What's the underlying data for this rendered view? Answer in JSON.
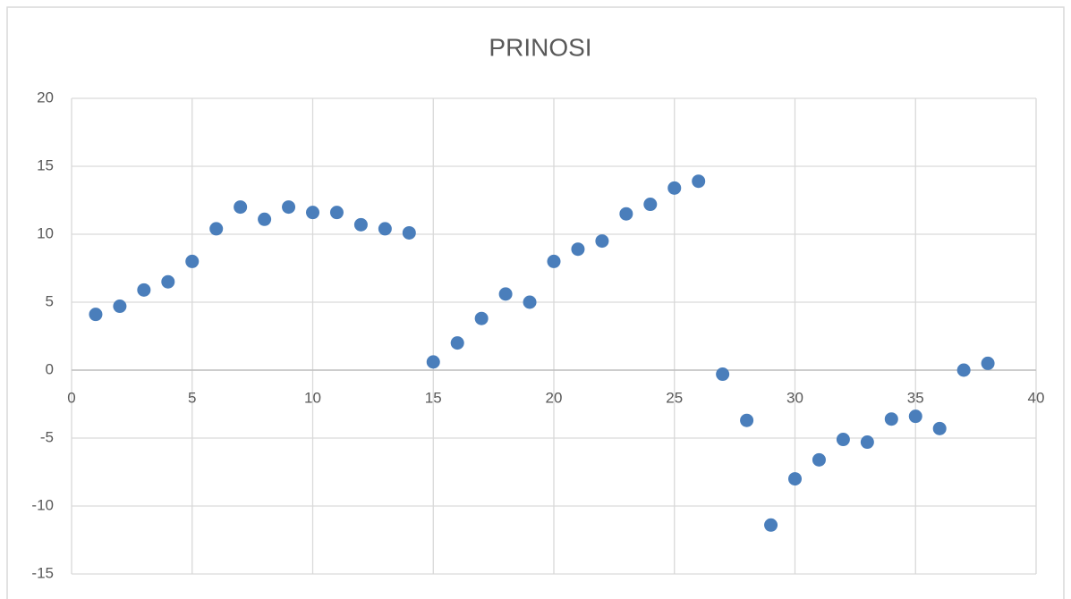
{
  "chart_data": {
    "type": "scatter",
    "title": "PRINOSI",
    "x": [
      1,
      2,
      3,
      4,
      5,
      6,
      7,
      8,
      9,
      10,
      11,
      12,
      13,
      14,
      15,
      16,
      17,
      18,
      19,
      20,
      21,
      22,
      23,
      24,
      25,
      26,
      27,
      28,
      29,
      30,
      31,
      32,
      33,
      34,
      35,
      36,
      37,
      38
    ],
    "values": [
      4.1,
      4.7,
      5.9,
      6.5,
      8.0,
      10.4,
      12.0,
      11.1,
      12.0,
      11.6,
      11.6,
      10.7,
      10.4,
      10.1,
      0.6,
      2.0,
      3.8,
      5.6,
      5.0,
      8.0,
      8.9,
      9.5,
      11.5,
      12.2,
      13.4,
      13.9,
      -0.3,
      -3.7,
      -11.4,
      -8.0,
      -6.6,
      -5.1,
      -5.3,
      -3.6,
      -3.4,
      -4.3,
      0.0,
      0.5
    ],
    "color": "#4a7ebb",
    "xlim": [
      0,
      40
    ],
    "xticks": [
      0,
      5,
      10,
      15,
      20,
      25,
      30,
      35,
      40
    ],
    "ylim": [
      -15,
      20
    ],
    "yticks": [
      -15,
      -10,
      -5,
      0,
      5,
      10,
      15,
      20
    ],
    "grid": true
  }
}
